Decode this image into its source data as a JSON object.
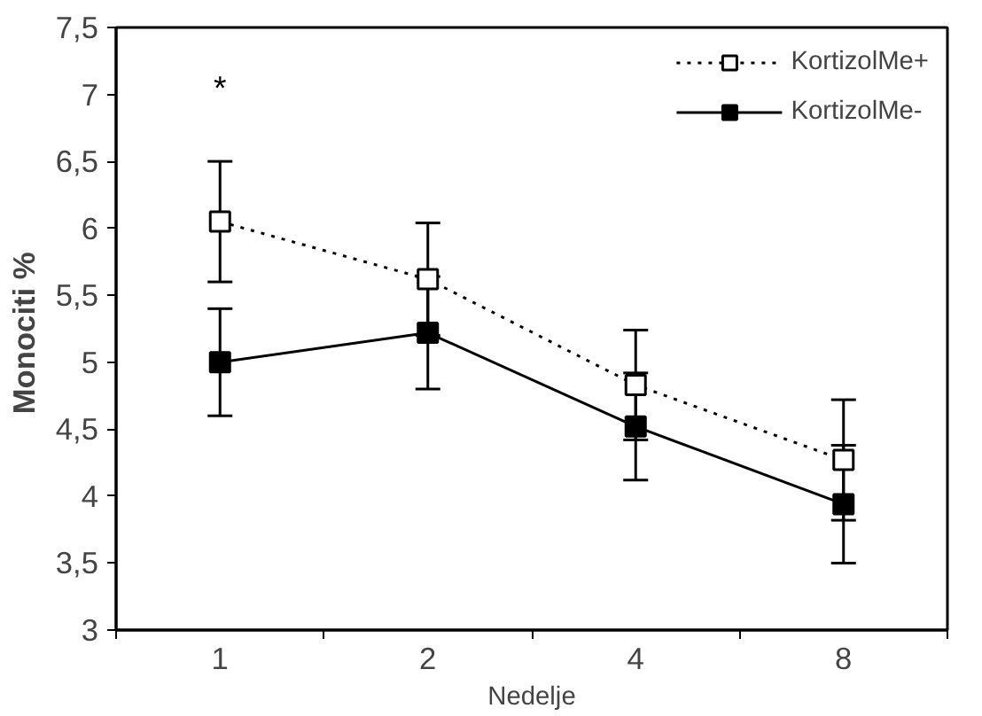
{
  "chart_data": {
    "type": "line",
    "xlabel": "Nedelje",
    "ylabel": "Monociti  %",
    "categories": [
      "1",
      "2",
      "4",
      "8"
    ],
    "series": [
      {
        "name": "KortizolMe+",
        "color": "#000000",
        "values": [
          6.05,
          5.62,
          4.83,
          4.27
        ],
        "errors": [
          0.45,
          0.42,
          0.41,
          0.45
        ],
        "line_style": "dotted"
      },
      {
        "name": "KortizolMe-",
        "color": "#000000",
        "values": [
          5.0,
          5.22,
          4.52,
          3.94
        ],
        "errors": [
          0.4,
          0.42,
          0.4,
          0.44
        ],
        "line_style": "solid"
      }
    ],
    "ylim": [
      3,
      7.5
    ],
    "yticks": [
      {
        "value": 3,
        "label": "3"
      },
      {
        "value": 3.5,
        "label": "3,5"
      },
      {
        "value": 4,
        "label": "4"
      },
      {
        "value": 4.5,
        "label": "4,5"
      },
      {
        "value": 5,
        "label": "5"
      },
      {
        "value": 5.5,
        "label": "5,5"
      },
      {
        "value": 6,
        "label": "6"
      },
      {
        "value": 6.5,
        "label": "6,5"
      },
      {
        "value": 7,
        "label": "7"
      },
      {
        "value": 7.5,
        "label": "7,5"
      }
    ],
    "annotations": [
      "*"
    ],
    "marker": "square",
    "grid": false,
    "legend": "top right"
  }
}
